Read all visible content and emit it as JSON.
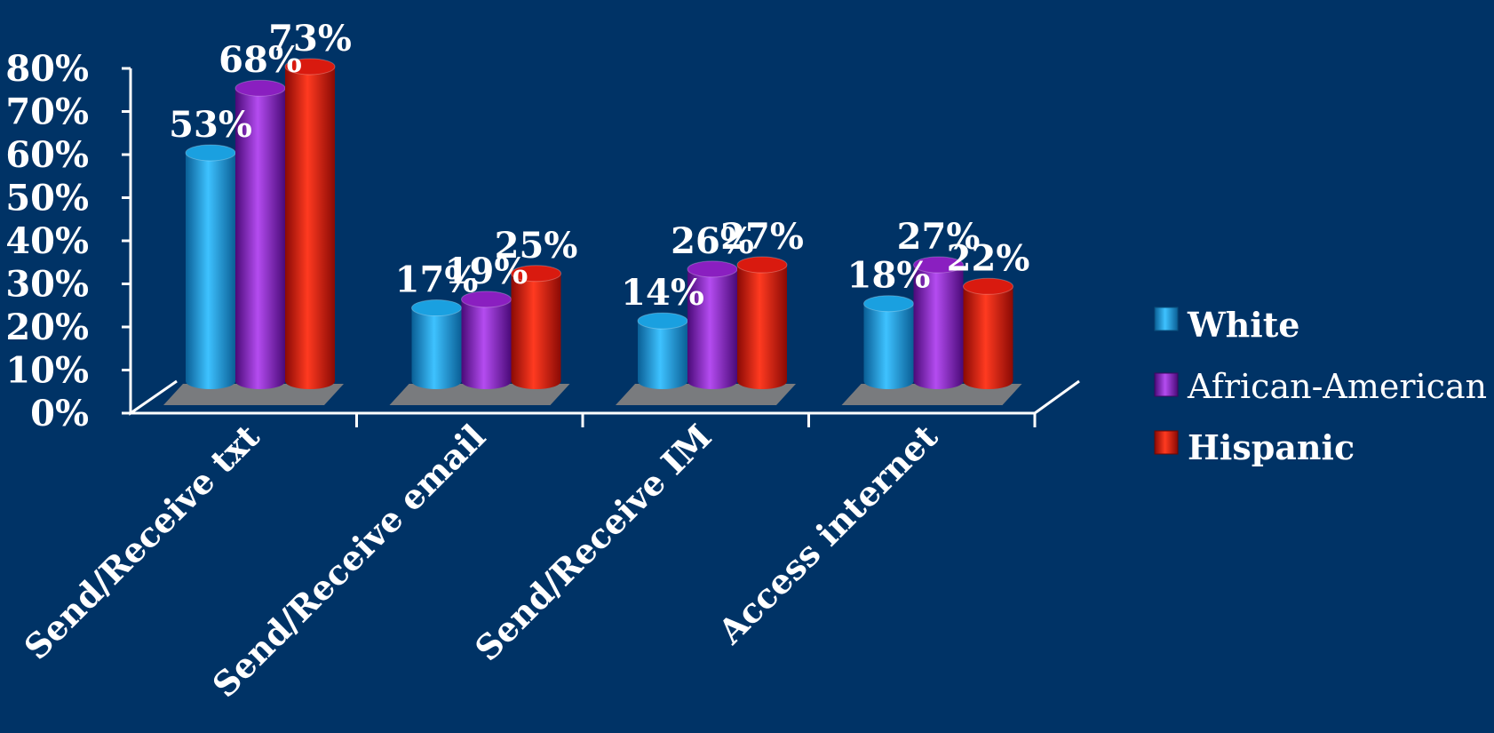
{
  "chart_data": {
    "type": "bar",
    "categories": [
      "Send/Receive txt",
      "Send/Receive email",
      "Send/Receive IM",
      "Access internet"
    ],
    "series": [
      {
        "name": "White",
        "values": [
          53,
          17,
          14,
          18
        ],
        "labels": [
          "53%",
          "17%",
          "14%",
          "18%"
        ],
        "color": "#1aa0e0"
      },
      {
        "name": "African-American",
        "values": [
          68,
          19,
          26,
          27
        ],
        "labels": [
          "68%",
          "19%",
          "26%",
          "27%"
        ],
        "color": "#8a1fc0"
      },
      {
        "name": "Hispanic",
        "values": [
          73,
          25,
          27,
          22
        ],
        "labels": [
          "73%",
          "25%",
          "27%",
          "22%"
        ],
        "color": "#d91a0f"
      }
    ],
    "yticks": [
      "0%",
      "10%",
      "20%",
      "30%",
      "40%",
      "50%",
      "60%",
      "70%",
      "80%"
    ],
    "ylim": [
      0,
      80
    ],
    "legend_position": "right",
    "grid": false
  },
  "colors": {
    "background": "#003366",
    "floor": "#808080",
    "axis": "#ffffff"
  }
}
